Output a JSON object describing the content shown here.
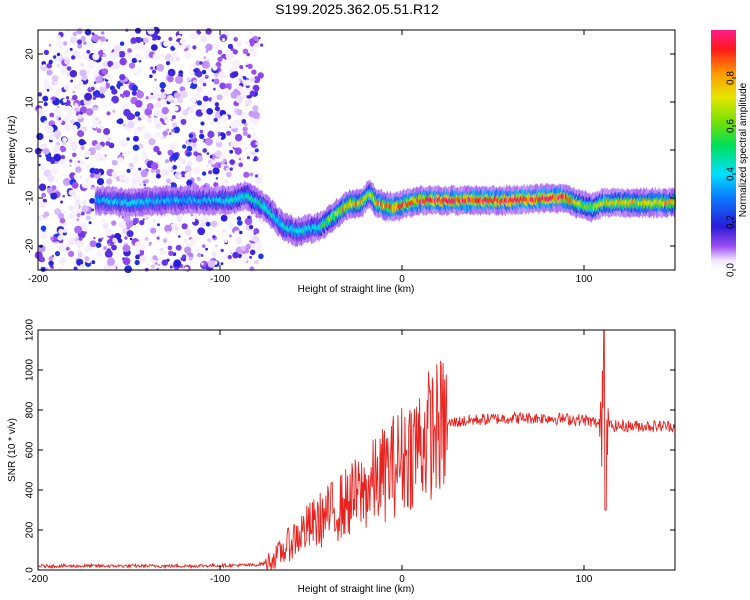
{
  "figure": {
    "title": "S199.2025.362.05.51.R12"
  },
  "chart_data": [
    {
      "type": "heatmap",
      "xlabel": "Height of straight line (km)",
      "ylabel": "Frequency (Hz)",
      "xlim": [
        -200,
        150
      ],
      "ylim": [
        -25,
        25
      ],
      "xticks": [
        -200,
        -100,
        0,
        100
      ],
      "yticks": [
        -20,
        -10,
        0,
        10,
        20
      ],
      "colorbar": {
        "label": "Normalized spectral amplitude",
        "range": [
          0,
          1
        ],
        "ticks": [
          "0.0",
          "0.2",
          "0.4",
          "0.6",
          "0.8"
        ],
        "tick_values": [
          0.0,
          0.2,
          0.4,
          0.6,
          0.8
        ]
      },
      "ridge": {
        "description_points_x": [
          -165,
          -150,
          -130,
          -110,
          -95,
          -85,
          -75,
          -65,
          -58,
          -52,
          -45,
          -40,
          -35,
          -30,
          -22,
          -18,
          -14,
          -10,
          -5,
          0,
          10,
          20,
          40,
          60,
          80,
          90,
          95,
          100,
          105,
          110,
          120,
          130,
          150
        ],
        "description_points_y": [
          -10.5,
          -11,
          -10.5,
          -10.5,
          -10.5,
          -9.5,
          -12,
          -16,
          -17,
          -16.5,
          -16,
          -14.5,
          -13,
          -11.5,
          -11,
          -9,
          -11,
          -11.5,
          -12,
          -11.5,
          -10.5,
          -10.5,
          -10.5,
          -10.5,
          -10,
          -10,
          -11,
          -11.5,
          -12,
          -11,
          -11,
          -11,
          -11
        ],
        "peak_amplitude": [
          0.35,
          0.4,
          0.35,
          0.35,
          0.4,
          0.45,
          0.45,
          0.4,
          0.45,
          0.4,
          0.45,
          0.6,
          0.7,
          0.8,
          0.75,
          0.65,
          0.75,
          0.8,
          0.85,
          0.85,
          0.9,
          0.95,
          0.95,
          0.95,
          0.95,
          0.9,
          0.7,
          0.6,
          0.6,
          0.7,
          0.75,
          0.75,
          0.75
        ]
      },
      "noise_region_xlim": [
        -200,
        -77
      ]
    },
    {
      "type": "line",
      "xlabel": "Height of straight line (km)",
      "ylabel": "SNR (10 * v/v)",
      "xlim": [
        -200,
        150
      ],
      "ylim": [
        0,
        1200
      ],
      "xticks": [
        -200,
        -100,
        0,
        100
      ],
      "yticks": [
        0,
        200,
        400,
        600,
        800,
        1000,
        1200
      ],
      "color": "#e8231f",
      "envelope": {
        "x": [
          -200,
          -120,
          -80,
          -75,
          -70,
          -65,
          -60,
          -55,
          -50,
          -45,
          -40,
          -35,
          -30,
          -25,
          -20,
          -15,
          -10,
          -5,
          0,
          5,
          10,
          15,
          20,
          25,
          30,
          40,
          50,
          60,
          70,
          80,
          90,
          100,
          105,
          108,
          110,
          111,
          112,
          113,
          115,
          120,
          130,
          140,
          150
        ],
        "y": [
          20,
          20,
          25,
          35,
          60,
          100,
          150,
          190,
          220,
          250,
          280,
          310,
          340,
          370,
          400,
          440,
          480,
          520,
          560,
          600,
          640,
          680,
          710,
          730,
          740,
          750,
          755,
          760,
          760,
          760,
          755,
          750,
          740,
          730,
          760,
          780,
          740,
          730,
          720,
          720,
          720,
          720,
          720
        ]
      },
      "spike": {
        "x": 111,
        "max": 1200,
        "min": 300
      }
    }
  ]
}
